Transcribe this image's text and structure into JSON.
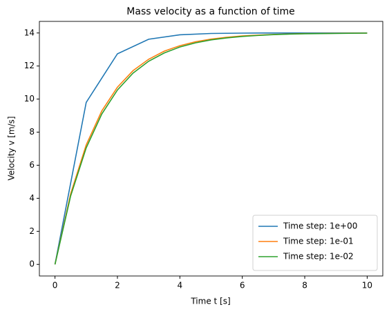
{
  "chart_data": {
    "type": "line",
    "title": "Mass velocity as a function of time",
    "x_label": "Time t [s]",
    "y_label": "Velocity v [m/s]",
    "xlim": [
      -0.5,
      10.5
    ],
    "ylim": [
      -0.7,
      14.7
    ],
    "xticks": [
      0,
      2,
      4,
      6,
      8,
      10
    ],
    "yticks": [
      0,
      2,
      4,
      6,
      8,
      10,
      12,
      14
    ],
    "legend": "lower right",
    "series": [
      {
        "name": "Time step: 1e+00",
        "color": "#1f77b4",
        "x": [
          0,
          1,
          2,
          3,
          4,
          5,
          6,
          7,
          8,
          9,
          10
        ],
        "values": [
          0,
          9.8,
          12.74,
          13.62,
          13.89,
          13.97,
          13.99,
          14.0,
          14.0,
          14.0,
          14.0
        ]
      },
      {
        "name": "Time step: 1e-01",
        "color": "#ff7f0e",
        "x": [
          0,
          0.5,
          1,
          1.5,
          2,
          2.5,
          3,
          3.5,
          4,
          4.5,
          5,
          5.5,
          6,
          6.5,
          7,
          7.5,
          8,
          8.5,
          9,
          9.5,
          10
        ],
        "values": [
          0,
          4.26,
          7.23,
          9.29,
          10.72,
          11.72,
          12.41,
          12.9,
          13.23,
          13.47,
          13.63,
          13.74,
          13.82,
          13.87,
          13.91,
          13.94,
          13.96,
          13.97,
          13.98,
          13.99,
          13.99
        ]
      },
      {
        "name": "Time step: 1e-02",
        "color": "#2ca02c",
        "x": [
          0,
          0.5,
          1,
          1.5,
          2,
          2.5,
          3,
          3.5,
          4,
          4.5,
          5,
          5.5,
          6,
          6.5,
          7,
          7.5,
          8,
          8.5,
          9,
          9.5,
          10
        ],
        "values": [
          0,
          4.13,
          7.05,
          9.1,
          10.55,
          11.57,
          12.29,
          12.79,
          13.15,
          13.4,
          13.58,
          13.7,
          13.79,
          13.85,
          13.9,
          13.93,
          13.95,
          13.96,
          13.97,
          13.98,
          13.99
        ]
      }
    ]
  }
}
